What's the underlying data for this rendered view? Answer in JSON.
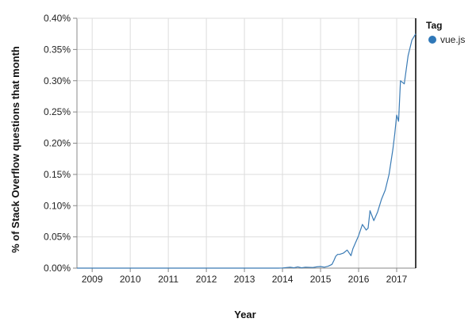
{
  "chart_data": {
    "type": "line",
    "xlabel": "Year",
    "ylabel": "% of Stack Overflow questions that month",
    "xlim": [
      2008.6,
      2017.5
    ],
    "ylim": [
      0,
      0.4
    ],
    "x_ticks": [
      2009,
      2010,
      2011,
      2012,
      2013,
      2014,
      2015,
      2016,
      2017
    ],
    "y_ticks": [
      0,
      0.05,
      0.1,
      0.15,
      0.2,
      0.25,
      0.3,
      0.35,
      0.4
    ],
    "y_tick_labels": [
      "0.00%",
      "0.05%",
      "0.10%",
      "0.15%",
      "0.20%",
      "0.25%",
      "0.30%",
      "0.35%",
      "0.40%"
    ],
    "grid": true,
    "legend_title": "Tag",
    "legend_placement": "top-right",
    "series": [
      {
        "name": "vue.js",
        "color": "#3a7bb5",
        "x": [
          2008.6,
          2013.9,
          2014.0,
          2014.2,
          2014.3,
          2014.4,
          2014.5,
          2014.6,
          2014.8,
          2014.9,
          2015.0,
          2015.1,
          2015.2,
          2015.3,
          2015.35,
          2015.4,
          2015.45,
          2015.5,
          2015.6,
          2015.7,
          2015.8,
          2015.85,
          2015.95,
          2016.0,
          2016.1,
          2016.2,
          2016.25,
          2016.3,
          2016.4,
          2016.5,
          2016.6,
          2016.7,
          2016.8,
          2016.9,
          2016.95,
          2017.0,
          2017.05,
          2017.1,
          2017.2,
          2017.3,
          2017.4,
          2017.5
        ],
        "values": [
          0,
          0,
          0.0003,
          0.0015,
          0.0005,
          0.002,
          0.0005,
          0.0015,
          0.001,
          0.002,
          0.0025,
          0.0015,
          0.003,
          0.006,
          0.012,
          0.019,
          0.022,
          0.022,
          0.024,
          0.029,
          0.02,
          0.031,
          0.045,
          0.052,
          0.07,
          0.061,
          0.064,
          0.092,
          0.076,
          0.09,
          0.11,
          0.125,
          0.15,
          0.19,
          0.215,
          0.245,
          0.235,
          0.3,
          0.295,
          0.34,
          0.365,
          0.375
        ]
      }
    ]
  }
}
